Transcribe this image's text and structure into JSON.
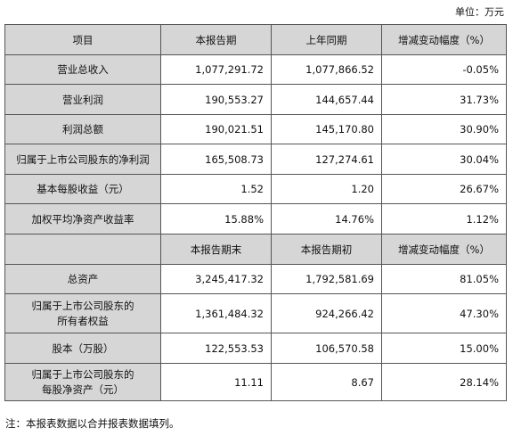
{
  "unit_label": "单位：万元",
  "header1": [
    "项目",
    "本报告期",
    "上年同期",
    "增减变动幅度（%）"
  ],
  "rows1": [
    [
      "营业总收入",
      "1,077,291.72",
      "1,077,866.52",
      "-0.05%"
    ],
    [
      "营业利润",
      "190,553.27",
      "144,657.44",
      "31.73%"
    ],
    [
      "利润总额",
      "190,021.51",
      "145,170.80",
      "30.90%"
    ],
    [
      "归属于上市公司股东的净利润",
      "165,508.73",
      "127,274.61",
      "30.04%"
    ],
    [
      "基本每股收益（元）",
      "1.52",
      "1.20",
      "26.67%"
    ],
    [
      "加权平均净资产收益率",
      "15.88%",
      "14.76%",
      "1.12%"
    ]
  ],
  "header2": [
    "",
    "本报告期末",
    "本报告期初",
    "增减变动幅度（%）"
  ],
  "rows2": [
    {
      "label1": "总资产",
      "label2": "",
      "c1": "3,245,417.32",
      "c2": "1,792,581.69",
      "c3": "81.05%"
    },
    {
      "label1": "归属于上市公司股东的",
      "label2": "所有者权益",
      "c1": "1,361,484.32",
      "c2": "924,266.42",
      "c3": "47.30%"
    },
    {
      "label1": "股本（万股）",
      "label2": "",
      "c1": "122,553.53",
      "c2": "106,570.58",
      "c3": "15.00%"
    },
    {
      "label1": "归属于上市公司股东的",
      "label2": "每股净资产（元）",
      "c1": "11.11",
      "c2": "8.67",
      "c3": "28.14%"
    }
  ],
  "note": "注：本报表数据以合并报表数据填列。"
}
